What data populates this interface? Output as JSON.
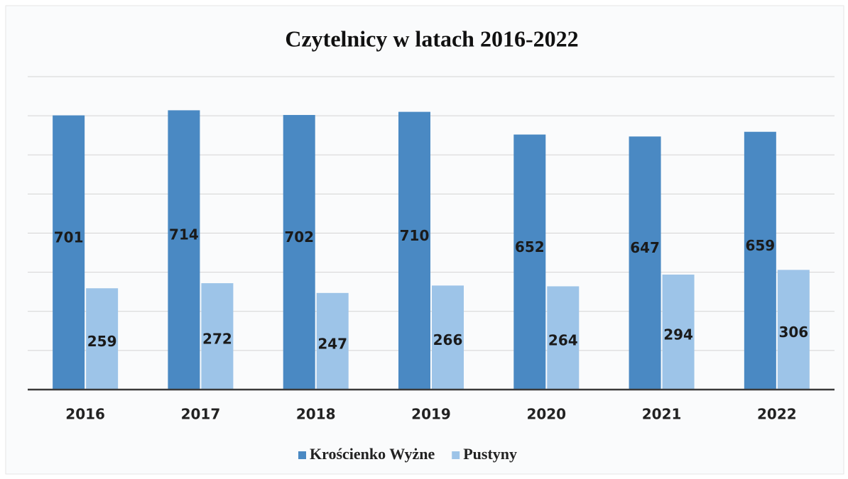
{
  "chart_data": {
    "type": "bar",
    "title": "Czytelnicy w latach 2016-2022",
    "categories": [
      "2016",
      "2017",
      "2018",
      "2019",
      "2020",
      "2021",
      "2022"
    ],
    "series": [
      {
        "name": "Krościenko Wyżne",
        "color": "#4a89c3",
        "values": [
          701,
          714,
          702,
          710,
          652,
          647,
          659
        ]
      },
      {
        "name": "Pustyny",
        "color": "#9dc4e8",
        "values": [
          259,
          272,
          247,
          266,
          264,
          294,
          306
        ]
      }
    ],
    "ylim": [
      0,
      800
    ],
    "yticks": [
      0,
      100,
      200,
      300,
      400,
      500,
      600,
      700,
      800
    ],
    "grid": true,
    "legend": "bottom"
  }
}
